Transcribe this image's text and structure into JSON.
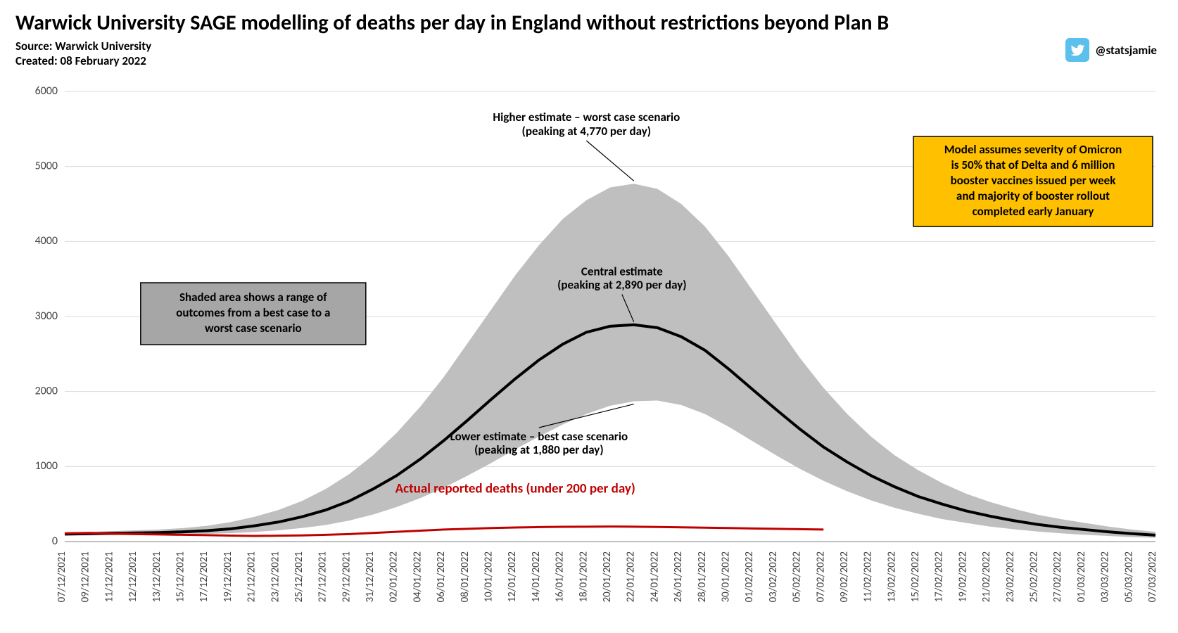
{
  "title": "Warwick University SAGE modelling of deaths per day in England without restrictions beyond Plan B",
  "source_line": "Source: Warwick University",
  "created_line": "Created: 08 February 2022",
  "twitter_handle": "@statsjamie",
  "chart": {
    "type": "line-with-band",
    "background_color": "#ffffff",
    "gridline_color": "#d9d9d9",
    "axis_color": "#7f7f7f",
    "font_family": "Calibri",
    "ylim": [
      0,
      6000
    ],
    "ytick_step": 1000,
    "yticks": [
      0,
      1000,
      2000,
      3000,
      4000,
      5000,
      6000
    ],
    "x_dates": [
      "07/12/2021",
      "09/12/2021",
      "11/12/2021",
      "12/12/2021",
      "13/12/2021",
      "15/12/2021",
      "17/12/2021",
      "19/12/2021",
      "21/12/2021",
      "23/12/2021",
      "25/12/2021",
      "27/12/2021",
      "29/12/2021",
      "31/12/2021",
      "02/01/2022",
      "04/01/2022",
      "06/01/2022",
      "08/01/2022",
      "10/01/2022",
      "12/01/2022",
      "14/01/2022",
      "16/01/2022",
      "18/01/2022",
      "20/01/2022",
      "22/01/2022",
      "24/01/2022",
      "26/01/2022",
      "28/01/2022",
      "30/01/2022",
      "01/02/2022",
      "03/02/2022",
      "05/02/2022",
      "07/02/2022",
      "09/02/2022",
      "11/02/2022",
      "13/02/2022",
      "15/02/2022",
      "17/02/2022",
      "19/02/2022",
      "21/02/2022",
      "23/02/2022",
      "25/02/2022",
      "27/02/2022",
      "01/03/2022",
      "03/03/2022",
      "05/03/2022",
      "07/03/2022"
    ],
    "series": {
      "upper": {
        "label": "Higher estimate – worst case scenario",
        "color_fill": "#bfbfbf",
        "values": [
          120,
          130,
          140,
          150,
          160,
          180,
          210,
          260,
          330,
          420,
          540,
          700,
          900,
          1150,
          1450,
          1800,
          2200,
          2650,
          3100,
          3550,
          3950,
          4300,
          4550,
          4720,
          4770,
          4700,
          4500,
          4200,
          3800,
          3350,
          2900,
          2450,
          2050,
          1700,
          1400,
          1150,
          950,
          780,
          640,
          530,
          440,
          360,
          300,
          250,
          200,
          160,
          130
        ]
      },
      "central": {
        "label": "Central estimate",
        "color": "#000000",
        "line_width": 4,
        "values": [
          100,
          105,
          110,
          115,
          120,
          130,
          145,
          170,
          210,
          260,
          330,
          420,
          540,
          700,
          880,
          1100,
          1350,
          1620,
          1900,
          2170,
          2420,
          2630,
          2790,
          2870,
          2890,
          2850,
          2730,
          2550,
          2300,
          2030,
          1760,
          1500,
          1260,
          1060,
          880,
          730,
          600,
          500,
          410,
          340,
          280,
          230,
          190,
          160,
          130,
          105,
          85
        ]
      },
      "lower": {
        "label": "Lower estimate – best case scenario",
        "color_fill": "#bfbfbf",
        "values": [
          80,
          82,
          85,
          88,
          90,
          95,
          102,
          112,
          128,
          150,
          180,
          220,
          280,
          360,
          460,
          580,
          720,
          880,
          1050,
          1230,
          1400,
          1560,
          1700,
          1810,
          1870,
          1880,
          1820,
          1700,
          1530,
          1340,
          1150,
          970,
          810,
          670,
          550,
          450,
          370,
          300,
          250,
          200,
          165,
          135,
          110,
          90,
          75,
          60,
          50
        ]
      },
      "actual": {
        "label": "Actual reported deaths",
        "color": "#c00000",
        "line_width": 3,
        "values": [
          110,
          115,
          105,
          100,
          95,
          90,
          85,
          80,
          75,
          78,
          82,
          90,
          100,
          115,
          130,
          145,
          160,
          170,
          180,
          188,
          193,
          197,
          198,
          200,
          198,
          195,
          190,
          185,
          180,
          175,
          170,
          165,
          160
        ]
      }
    },
    "annotations": {
      "higher": {
        "line1": "Higher estimate – worst case scenario",
        "line2": "(peaking at 4,770 per day)"
      },
      "central": {
        "line1": "Central estimate",
        "line2": "(peaking at 2,890 per day)"
      },
      "lower": {
        "line1": "Lower estimate – best case scenario",
        "line2": "(peaking at 1,880 per day)"
      },
      "actual": "Actual reported deaths (under 200 per day)",
      "grey_box": {
        "line1": "Shaded area shows a range of",
        "line2": "outcomes from a best case to a",
        "line3": "worst case scenario"
      },
      "orange_box": {
        "line1": "Model assumes severity of Omicron",
        "line2": "is 50% that of Delta and 6 million",
        "line3": "booster vaccines issued per week",
        "line4": "and majority of booster rollout",
        "line5": "completed early January"
      }
    },
    "twitter_icon_fill": "#5bc0eb",
    "twitter_logo_fill": "#ffffff",
    "annotation_line_color": "#000000",
    "xtick_rotation_deg": -90,
    "xtick_fontsize": 15,
    "ytick_fontsize": 16,
    "annot_fontsize": 17,
    "annot_fontweight": "bold"
  }
}
